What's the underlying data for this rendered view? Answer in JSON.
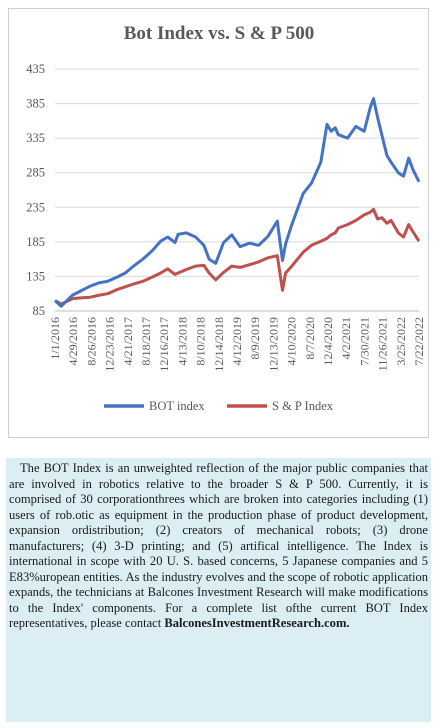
{
  "chart_data": {
    "type": "line",
    "title": "Bot Index vs. S & P 500",
    "ylim": [
      85,
      435
    ],
    "y_ticks": [
      "85",
      "135",
      "185",
      "235",
      "285",
      "335",
      "385",
      "435"
    ],
    "x_tick_labels": [
      "1/1/2016",
      "4/29/2016",
      "8/26/2016",
      "12/23/2016",
      "4/21/2017",
      "8/18/2017",
      "12/16/2017",
      "4/13/2018",
      "8/10/2018",
      "12/14/2018",
      "4/12/2019",
      "8/9/2019",
      "12/13/2019",
      "4/10/2020",
      "8/7/2020",
      "12/4/2020",
      "4/2/2021",
      "7/30/2021",
      "11/26/2021",
      "3/25/2022",
      "7/22/2022"
    ],
    "x": [
      "2016-01-01",
      "2016-02-12",
      "2016-04-29",
      "2016-06-24",
      "2016-08-26",
      "2016-10-28",
      "2016-12-23",
      "2017-02-24",
      "2017-04-21",
      "2017-06-16",
      "2017-08-18",
      "2017-10-20",
      "2017-12-16",
      "2018-02-02",
      "2018-03-23",
      "2018-04-13",
      "2018-06-08",
      "2018-08-10",
      "2018-10-05",
      "2018-11-09",
      "2018-12-24",
      "2019-02-15",
      "2019-04-12",
      "2019-06-07",
      "2019-08-09",
      "2019-10-11",
      "2019-12-13",
      "2020-02-14",
      "2020-03-20",
      "2020-04-10",
      "2020-05-22",
      "2020-08-07",
      "2020-10-02",
      "2020-12-04",
      "2021-01-15",
      "2021-02-12",
      "2021-03-12",
      "2021-04-02",
      "2021-06-04",
      "2021-07-30",
      "2021-09-24",
      "2021-11-05",
      "2021-11-26",
      "2021-12-24",
      "2022-01-21",
      "2022-02-25",
      "2022-03-25",
      "2022-05-13",
      "2022-06-17",
      "2022-07-22",
      "2022-08-19",
      "2022-09-30"
    ],
    "series": [
      {
        "name": "BOT index",
        "color": "#4472c4",
        "values": [
          100,
          92,
          108,
          114,
          121,
          126,
          128,
          134,
          140,
          150,
          160,
          172,
          186,
          192,
          184,
          196,
          198,
          192,
          180,
          160,
          154,
          184,
          195,
          178,
          183,
          180,
          193,
          215,
          158,
          182,
          210,
          255,
          270,
          300,
          355,
          345,
          350,
          340,
          335,
          352,
          345,
          380,
          392,
          365,
          340,
          310,
          300,
          285,
          280,
          306,
          290,
          272
        ]
      },
      {
        "name": "S & P Index",
        "color": "#c0504d",
        "values": [
          100,
          95,
          103,
          104,
          105,
          108,
          110,
          116,
          120,
          124,
          128,
          134,
          140,
          146,
          138,
          140,
          145,
          150,
          151,
          140,
          130,
          141,
          150,
          148,
          152,
          156,
          162,
          165,
          115,
          140,
          150,
          170,
          180,
          186,
          190,
          195,
          198,
          205,
          210,
          216,
          224,
          228,
          232,
          218,
          220,
          212,
          216,
          198,
          192,
          210,
          200,
          186
        ]
      }
    ],
    "legend_position": "bottom"
  },
  "description": {
    "text": "The BOT Index is an unweighted reflection of the major public companies that are involved in robotics relative to the broader S & P 500. Currently, it is comprised of 30 corporationthrees which are broken into categories including (1) users of rob.otic as equipment in the production phase of product development, expansion ordistribution; (2) creators of mechanical robots; (3) drone manufacturers; (4) 3-D printing; and (5) artifical intelligence. The Index is international in scope with 20 U. S. based concerns, 5 Japanese companies and 5 E83%uropean entities. As the industry evolves and the scope of robotic application expands, the technicians at Balcones Investment Research will make modifications to the Index' components. For a  complete list ofthe current BOT Index representatives, please contact",
    "link": "BalconesInvestmentResearch.com."
  }
}
